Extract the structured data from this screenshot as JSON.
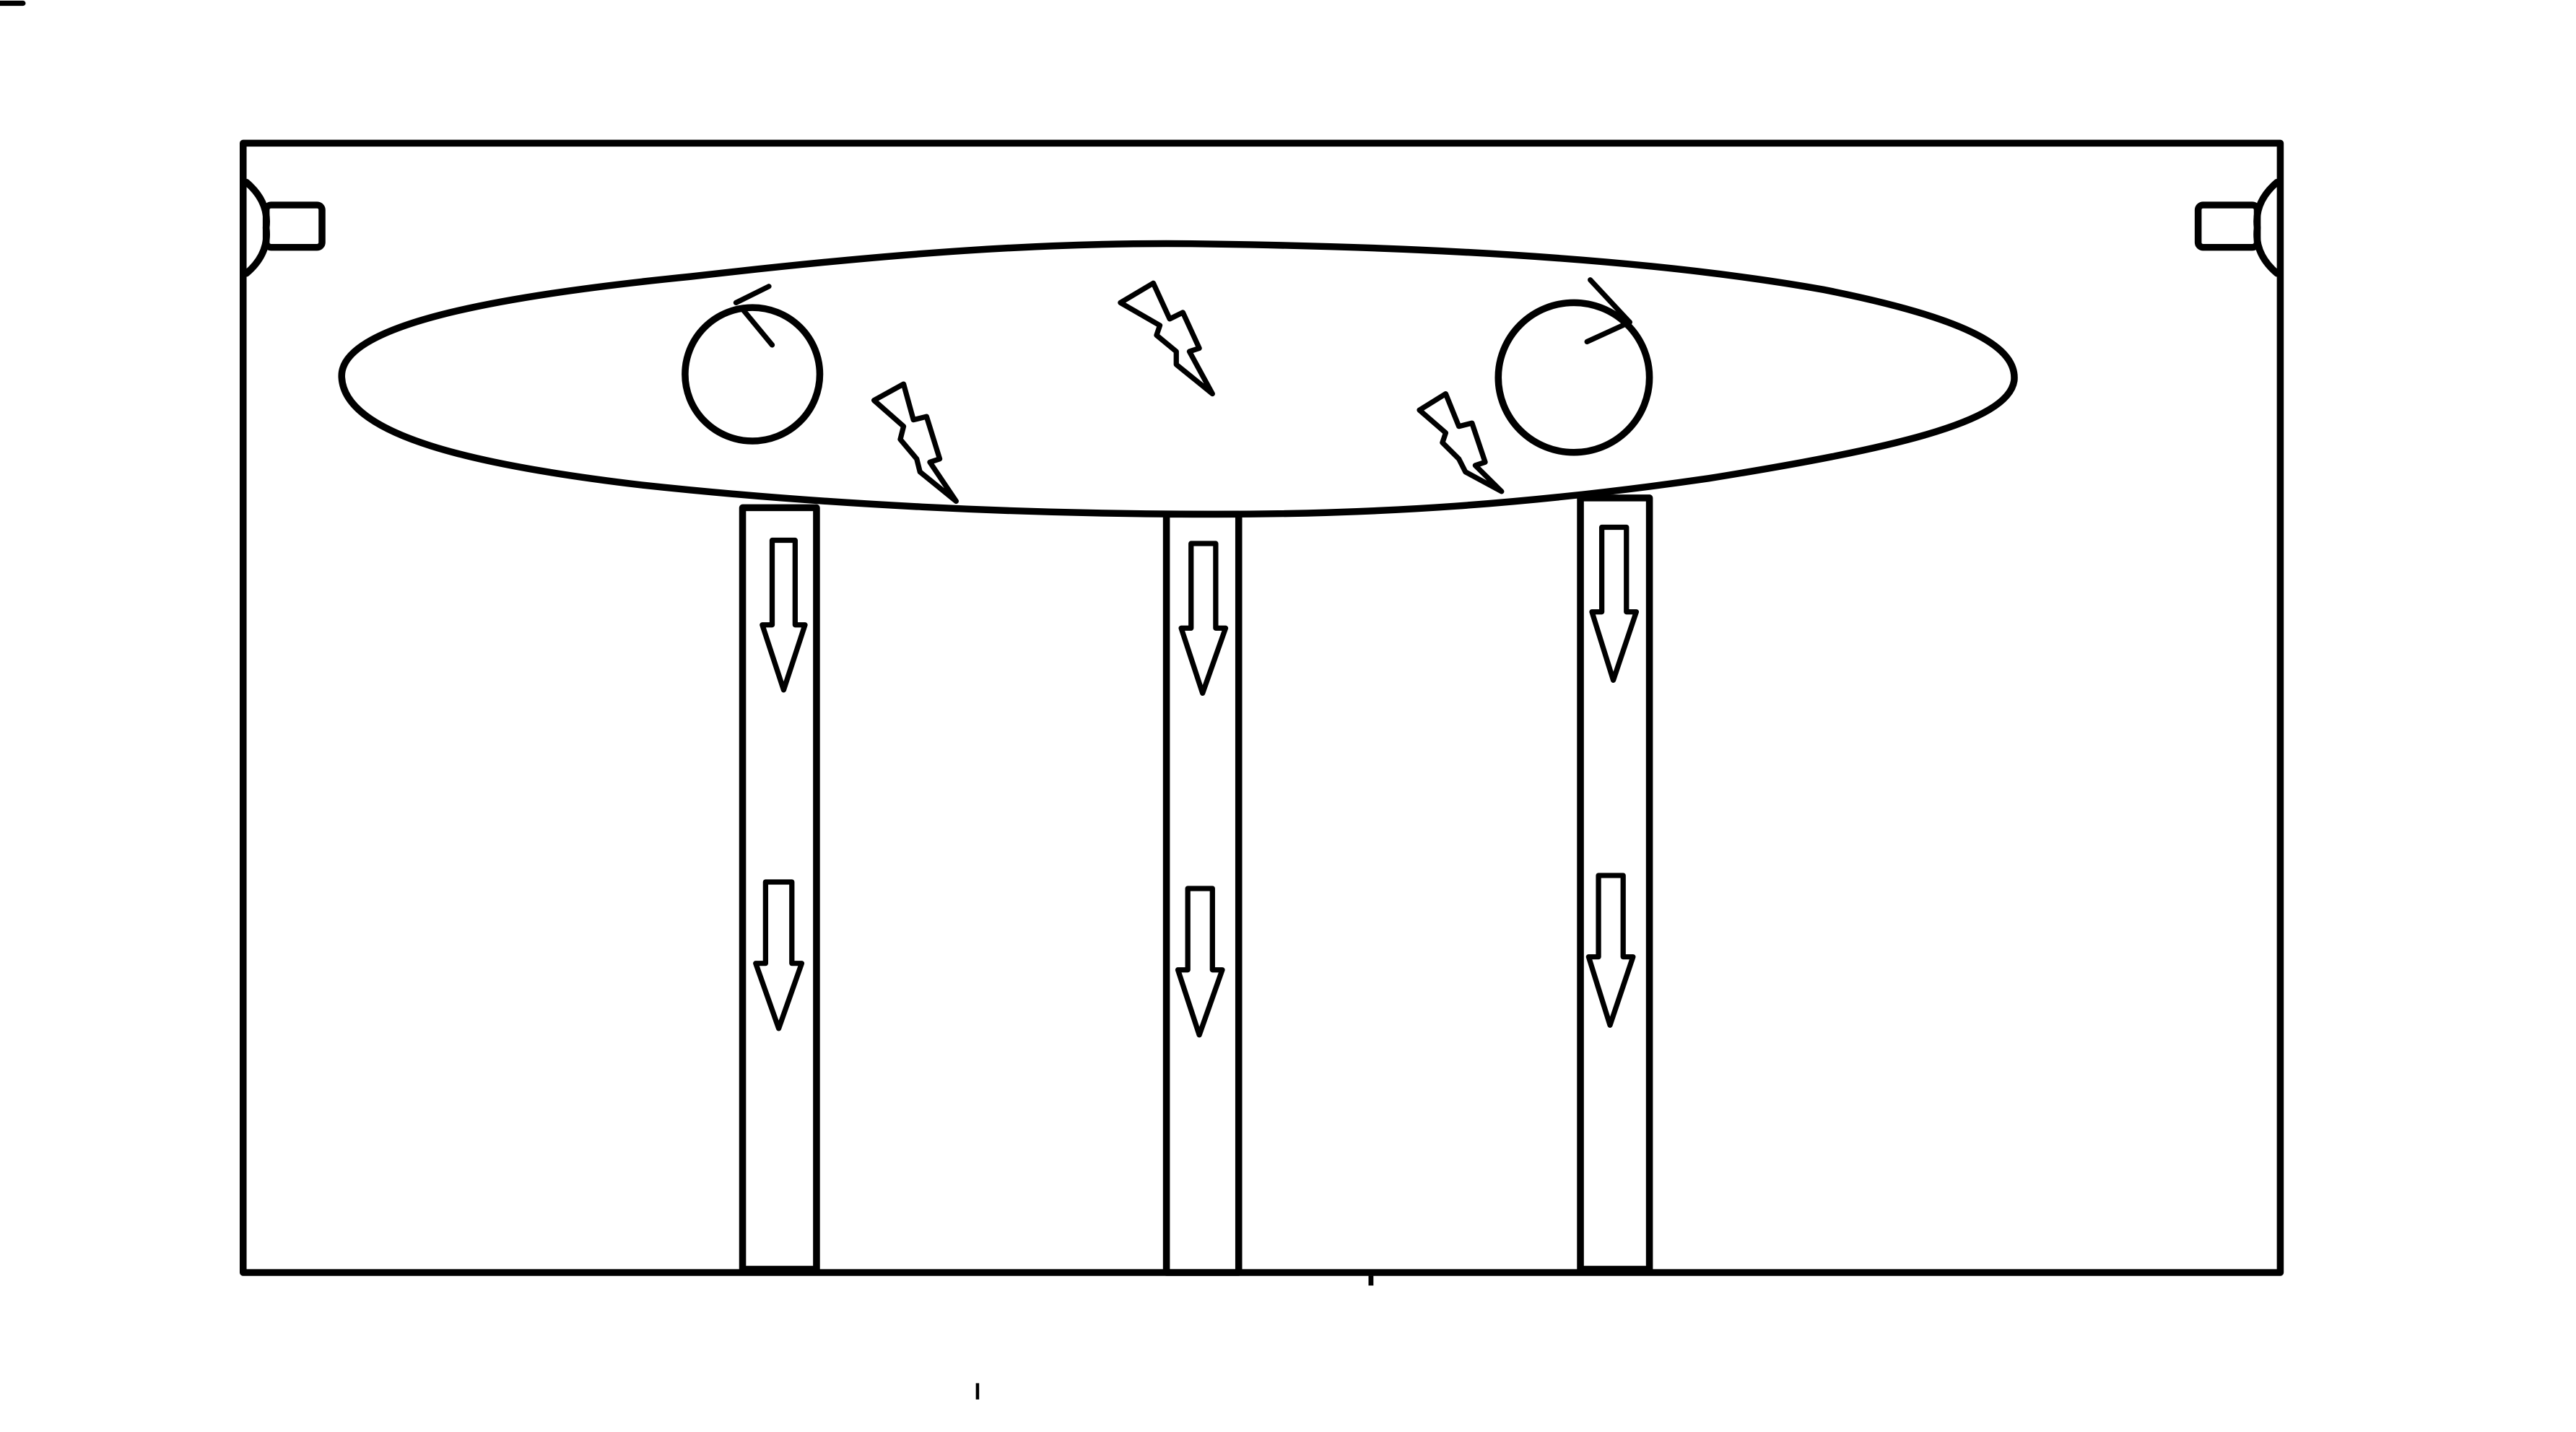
{
  "diagram": {
    "elements": {
      "chamber": "rectangular-enclosure",
      "top_zone": "ellipse",
      "rotors": [
        "circular-arrow-icon",
        "circular-arrow-icon"
      ],
      "sparks": [
        "lightning-icon",
        "lightning-icon",
        "lightning-icon"
      ],
      "tubes": [
        "vertical-tube",
        "vertical-tube",
        "vertical-tube"
      ],
      "flow_arrows_per_tube": 2,
      "flow_direction": "down",
      "ports": [
        "side-port-icon",
        "side-port-icon"
      ]
    },
    "colors": {
      "line": "#000000",
      "background": "#ffffff"
    }
  }
}
